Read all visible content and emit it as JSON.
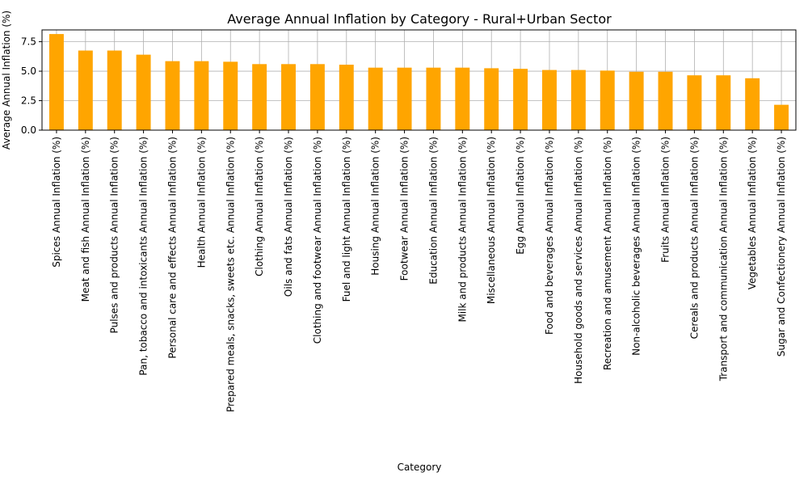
{
  "chart_data": {
    "type": "bar",
    "title": "Average Annual Inflation by Category - Rural+Urban Sector",
    "xlabel": "Category",
    "ylabel": "Average Annual Inflation (%)",
    "ylim": [
      0,
      8.5
    ],
    "yticks": [
      "0.0",
      "2.5",
      "5.0",
      "7.5"
    ],
    "grid": true,
    "bar_color": "#ffa500",
    "categories": [
      "Spices Annual Inflation (%)",
      "Meat and fish Annual Inflation (%)",
      "Pulses and products Annual Inflation (%)",
      "Pan, tobacco and intoxicants Annual Inflation (%)",
      "Personal care and effects Annual Inflation (%)",
      "Health Annual Inflation (%)",
      "Prepared meals, snacks, sweets etc. Annual Inflation (%)",
      "Clothing Annual Inflation (%)",
      "Oils and fats Annual Inflation (%)",
      "Clothing and footwear Annual Inflation (%)",
      "Fuel and light Annual Inflation (%)",
      "Housing Annual Inflation (%)",
      "Footwear Annual Inflation (%)",
      "Education Annual Inflation (%)",
      "Milk and products Annual Inflation (%)",
      "Miscellaneous Annual Inflation (%)",
      "Egg Annual Inflation (%)",
      "Food and beverages Annual Inflation (%)",
      "Household goods and services Annual Inflation (%)",
      "Recreation and amusement Annual Inflation (%)",
      "Non-alcoholic beverages Annual Inflation (%)",
      "Fruits Annual Inflation (%)",
      "Cereals and products Annual Inflation (%)",
      "Transport and communication Annual Inflation (%)",
      "Vegetables Annual Inflation (%)",
      "Sugar and Confectionery Annual Inflation (%)"
    ],
    "values": [
      8.15,
      6.75,
      6.75,
      6.4,
      5.85,
      5.85,
      5.8,
      5.6,
      5.6,
      5.6,
      5.55,
      5.3,
      5.3,
      5.3,
      5.3,
      5.25,
      5.2,
      5.1,
      5.1,
      5.05,
      4.95,
      4.95,
      4.65,
      4.65,
      4.4,
      2.15
    ]
  }
}
